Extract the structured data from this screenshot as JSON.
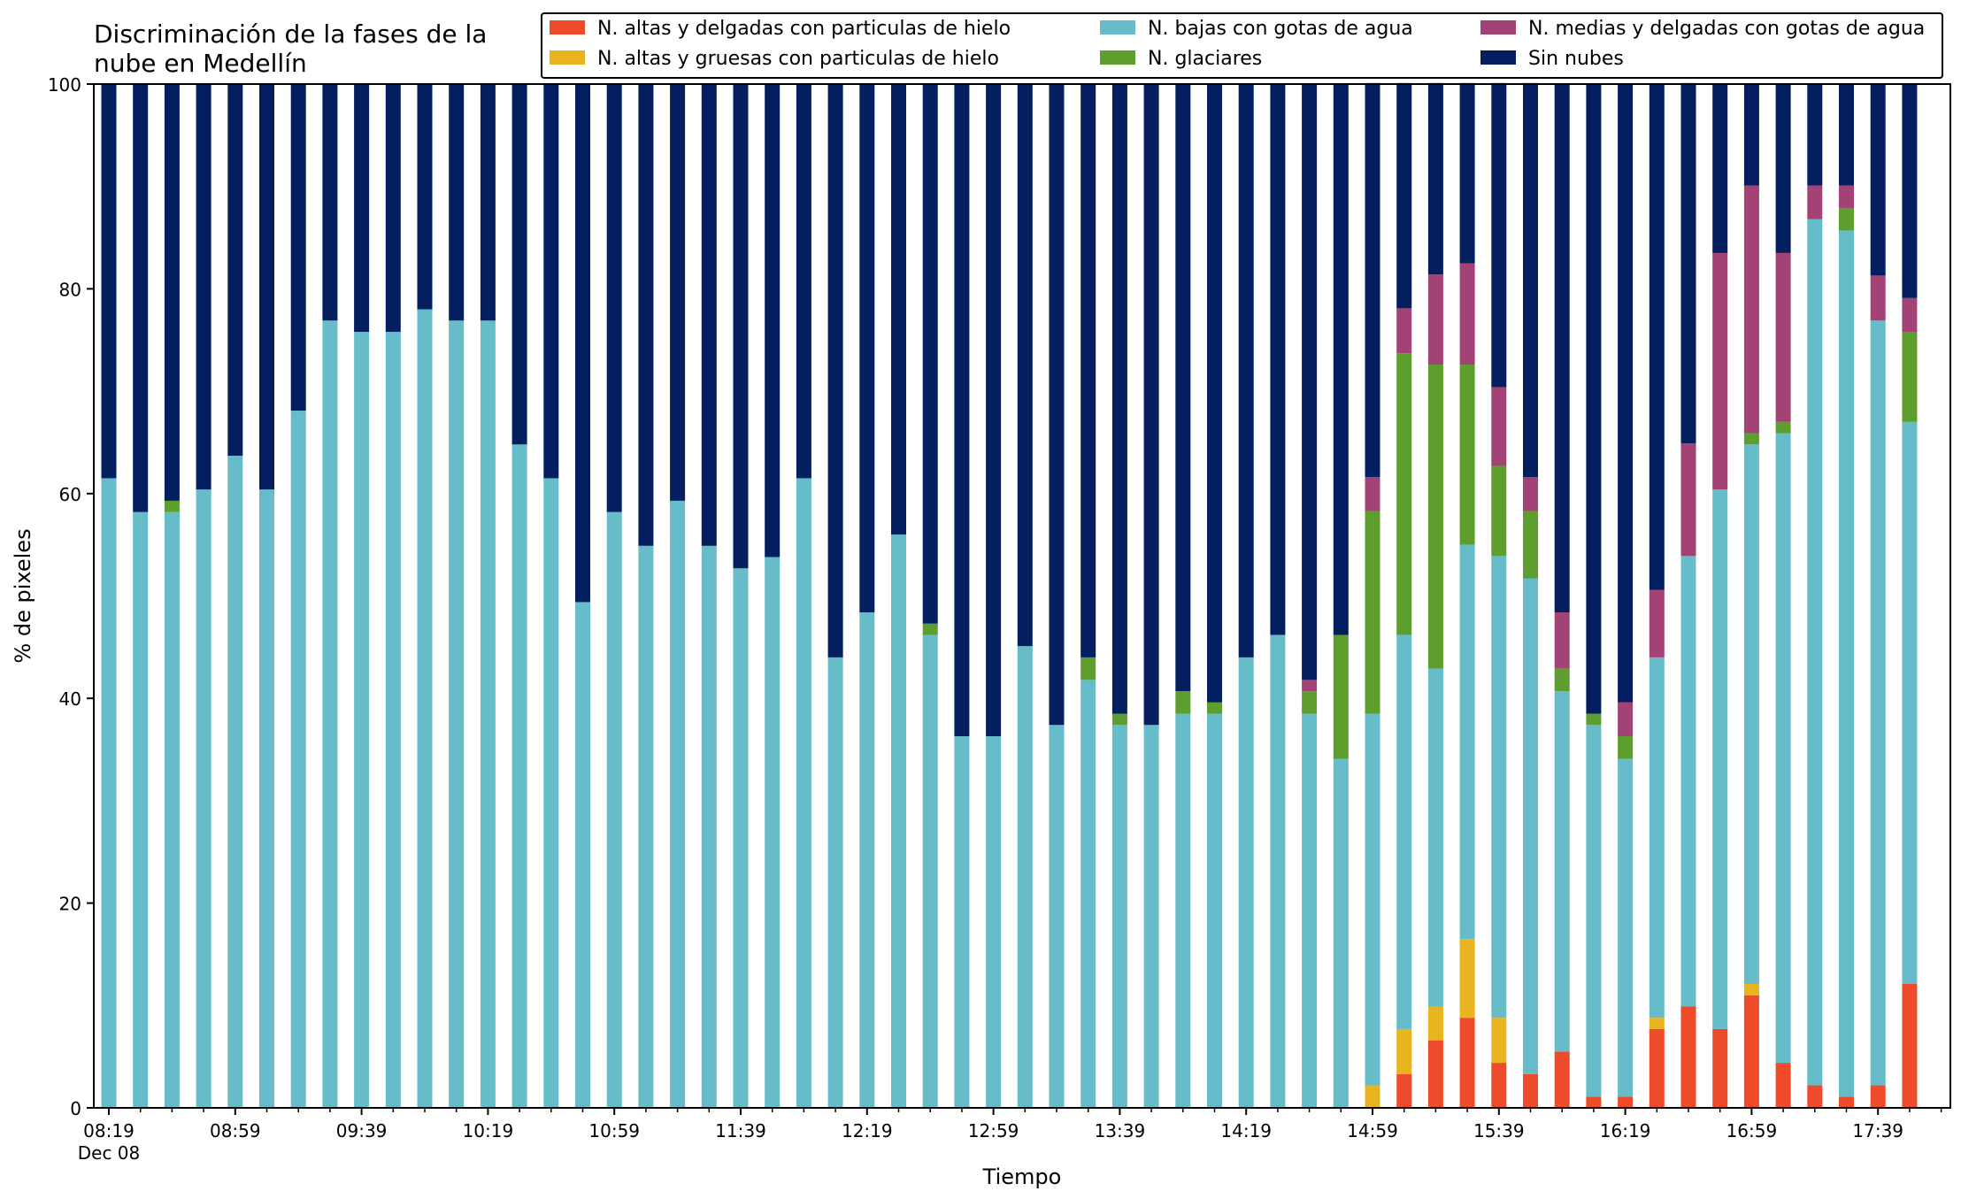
{
  "chart_data": {
    "type": "bar",
    "stacked": true,
    "title": "Discriminación de la fases de la\nnube en Medellín",
    "xlabel": "Tiempo",
    "ylabel": "% de pixeles",
    "ylim": [
      0,
      100
    ],
    "yticks": [
      0,
      20,
      40,
      60,
      80,
      100
    ],
    "xtick_labels": [
      "08:19",
      "08:59",
      "09:39",
      "10:19",
      "10:59",
      "11:39",
      "12:19",
      "12:59",
      "13:39",
      "14:19",
      "14:59",
      "15:39",
      "16:19",
      "16:59",
      "17:39"
    ],
    "x_date_label": "Dec 08",
    "legend_position": "top-right",
    "categories": [
      "08:19",
      "08:29",
      "08:39",
      "08:49",
      "08:59",
      "09:09",
      "09:19",
      "09:29",
      "09:39",
      "09:49",
      "09:59",
      "10:09",
      "10:19",
      "10:29",
      "10:39",
      "10:49",
      "10:59",
      "11:09",
      "11:19",
      "11:29",
      "11:39",
      "11:49",
      "11:59",
      "12:09",
      "12:19",
      "12:29",
      "12:39",
      "12:49",
      "12:59",
      "13:09",
      "13:19",
      "13:29",
      "13:39",
      "13:49",
      "13:59",
      "14:09",
      "14:19",
      "14:29",
      "14:39",
      "14:49",
      "14:59",
      "15:09",
      "15:19",
      "15:29",
      "15:39",
      "15:49",
      "15:59",
      "16:09",
      "16:19",
      "16:29",
      "16:39",
      "16:49",
      "16:59",
      "17:09",
      "17:19",
      "17:29",
      "17:39",
      "17:49"
    ],
    "series": [
      {
        "name": "N. altas y delgadas con particulas de hielo",
        "color": "#ee4a2c",
        "values": [
          0,
          0,
          0,
          0,
          0,
          0,
          0,
          0,
          0,
          0,
          0,
          0,
          0,
          0,
          0,
          0,
          0,
          0,
          0,
          0,
          0,
          0,
          0,
          0,
          0,
          0,
          0,
          0,
          0,
          0,
          0,
          0,
          0,
          0,
          0,
          0,
          0,
          0,
          0,
          0,
          0,
          3.3,
          6.6,
          8.8,
          4.4,
          3.3,
          5.5,
          1.1,
          1.1,
          7.7,
          9.9,
          7.7,
          11.0,
          4.4,
          2.2,
          1.1,
          2.2,
          12.1
        ]
      },
      {
        "name": "N. altas y gruesas con particulas de hielo",
        "color": "#e8b520",
        "values": [
          0,
          0,
          0,
          0,
          0,
          0,
          0,
          0,
          0,
          0,
          0,
          0,
          0,
          0,
          0,
          0,
          0,
          0,
          0,
          0,
          0,
          0,
          0,
          0,
          0,
          0,
          0,
          0,
          0,
          0,
          0,
          0,
          0,
          0,
          0,
          0,
          0,
          0,
          0,
          0,
          2.2,
          4.4,
          3.3,
          7.7,
          4.4,
          0,
          0,
          0,
          0,
          1.1,
          0,
          0,
          1.1,
          0,
          0,
          0,
          0,
          0
        ]
      },
      {
        "name": "N. bajas con gotas de agua",
        "color": "#66bdc9",
        "values": [
          61.5,
          58.2,
          58.2,
          60.4,
          63.7,
          60.4,
          68.1,
          76.9,
          75.8,
          75.8,
          78.0,
          76.9,
          76.9,
          64.8,
          61.5,
          49.4,
          58.2,
          54.9,
          59.3,
          54.9,
          52.7,
          53.8,
          61.5,
          44.0,
          48.4,
          56.0,
          46.2,
          36.3,
          36.3,
          45.1,
          37.4,
          41.8,
          37.4,
          37.4,
          38.5,
          38.5,
          44.0,
          46.2,
          38.5,
          34.1,
          36.3,
          38.5,
          33.0,
          38.5,
          45.1,
          48.4,
          35.2,
          36.3,
          33.0,
          35.2,
          44.0,
          52.7,
          52.7,
          61.5,
          84.6,
          84.6,
          74.7,
          54.9
        ]
      },
      {
        "name": "N. glaciares",
        "color": "#5e9e2e",
        "values": [
          0,
          0,
          1.1,
          0,
          0,
          0,
          0,
          0,
          0,
          0,
          0,
          0,
          0,
          0,
          0,
          0,
          0,
          0,
          0,
          0,
          0,
          0,
          0,
          0,
          0,
          0,
          1.1,
          0,
          0,
          0,
          0,
          2.2,
          1.1,
          0,
          2.2,
          1.1,
          0,
          0,
          2.2,
          12.1,
          19.8,
          27.5,
          29.7,
          17.6,
          8.8,
          6.6,
          2.2,
          1.1,
          2.2,
          0,
          0,
          0,
          1.1,
          1.1,
          0,
          2.2,
          0,
          8.8
        ]
      },
      {
        "name": "N. medias y delgadas con gotas de agua",
        "color": "#a34275",
        "values": [
          0,
          0,
          0,
          0,
          0,
          0,
          0,
          0,
          0,
          0,
          0,
          0,
          0,
          0,
          0,
          0,
          0,
          0,
          0,
          0,
          0,
          0,
          0,
          0,
          0,
          0,
          0,
          0,
          0,
          0,
          0,
          0,
          0,
          0,
          0,
          0,
          0,
          0,
          1.1,
          0,
          3.3,
          4.4,
          8.8,
          9.9,
          7.7,
          3.3,
          5.5,
          0,
          3.3,
          6.6,
          11.0,
          23.1,
          24.2,
          16.5,
          3.3,
          2.2,
          4.4,
          3.3
        ]
      },
      {
        "name": "Sin nubes",
        "color": "#031f5f",
        "values": [
          38.5,
          41.8,
          40.7,
          39.6,
          36.3,
          39.6,
          31.9,
          23.1,
          24.2,
          24.2,
          22.0,
          23.1,
          23.1,
          35.2,
          38.5,
          50.6,
          41.8,
          45.1,
          40.7,
          45.1,
          47.3,
          46.2,
          38.5,
          56.0,
          51.6,
          44.0,
          52.7,
          63.7,
          63.7,
          54.9,
          62.6,
          56.0,
          61.5,
          62.6,
          59.3,
          60.4,
          56.0,
          53.8,
          58.2,
          53.8,
          38.5,
          22.0,
          18.7,
          17.6,
          29.7,
          38.5,
          51.6,
          61.5,
          60.4,
          49.4,
          35.2,
          16.5,
          9.9,
          16.5,
          9.9,
          9.9,
          18.7,
          20.9
        ]
      }
    ]
  }
}
